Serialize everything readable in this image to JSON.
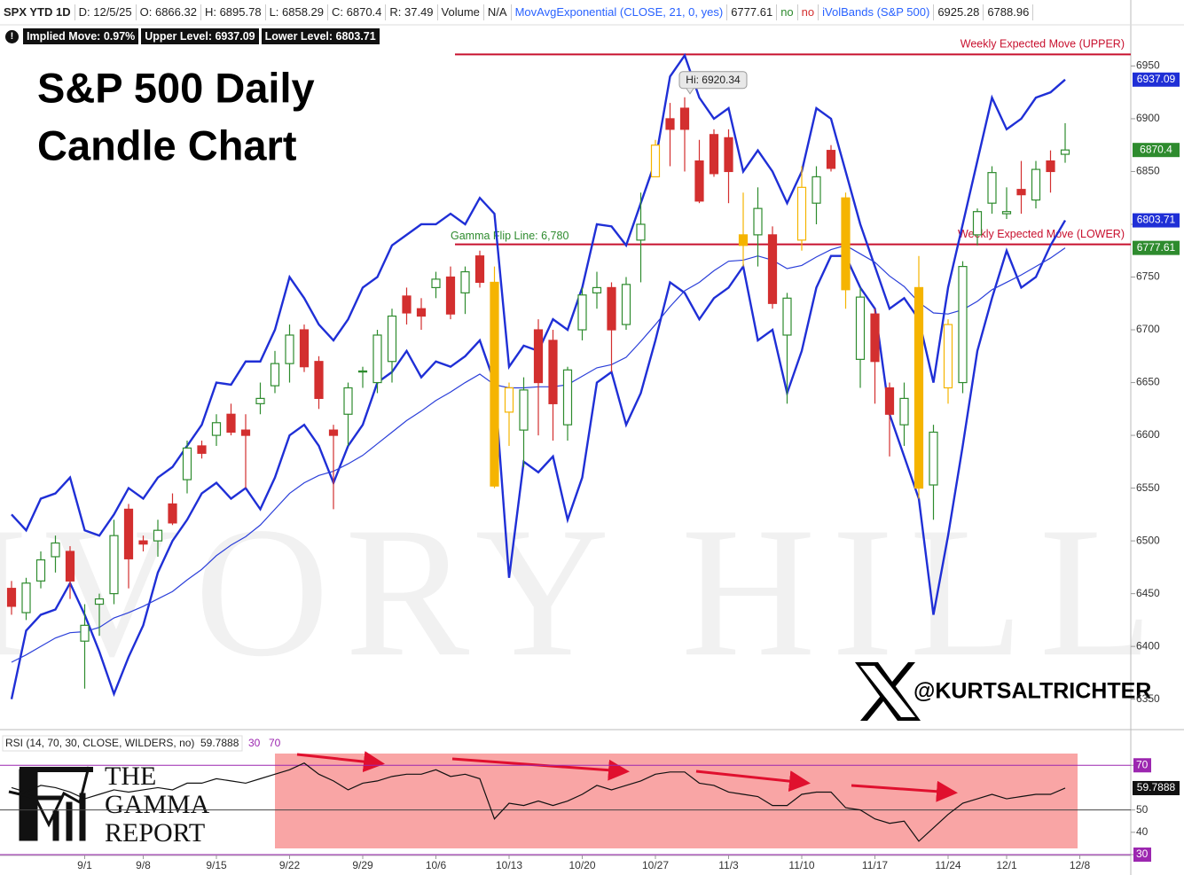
{
  "header": {
    "items": [
      "SPX YTD 1D",
      "D: 12/5/25",
      "O: 6866.32",
      "H: 6895.78",
      "L: 6858.29",
      "C: 6870.4",
      "R: 37.49",
      "Volume",
      "N/A",
      "MovAvgExponential (CLOSE, 21, 0, yes)",
      "6777.61",
      "no",
      "no",
      "iVolBands (S&P 500)",
      "6925.28",
      "6788.96"
    ]
  },
  "implied_move": [
    "Implied Move: 0.97%",
    "Upper Level: 6937.09",
    "Lower Level: 6803.71"
  ],
  "branding": {
    "watermark": "IVORY HILL",
    "handle": "@KURTSALTRICHTER",
    "logo": [
      "THE",
      "GAMMA",
      "REPORT"
    ]
  },
  "chart_data": [
    {
      "type": "candlestick",
      "title": [
        "S&P 500 Daily",
        "Candle Chart"
      ],
      "categories": [
        null,
        null,
        null,
        null,
        null,
        "9/1",
        null,
        null,
        null,
        "9/8",
        null,
        null,
        null,
        null,
        "9/15",
        null,
        null,
        null,
        null,
        "9/22",
        null,
        null,
        null,
        null,
        "9/29",
        null,
        null,
        null,
        null,
        "10/6",
        null,
        null,
        null,
        null,
        "10/13",
        null,
        null,
        null,
        null,
        "10/20",
        null,
        null,
        null,
        null,
        "10/27",
        null,
        null,
        null,
        null,
        "11/3",
        null,
        null,
        null,
        null,
        "11/10",
        null,
        null,
        null,
        null,
        "11/17",
        null,
        null,
        null,
        null,
        "11/24",
        null,
        null,
        null,
        "12/1",
        null,
        null,
        null,
        null,
        "12/8"
      ],
      "open": [
        6455,
        6432,
        6462,
        6485,
        6490,
        6405,
        6440,
        6450,
        6530,
        6500,
        6500,
        6535,
        6558,
        6590,
        6600,
        6620,
        6605,
        6630,
        6647,
        6668,
        6700,
        6670,
        6605,
        6620,
        6660,
        6650,
        6670,
        6732,
        6720,
        6740,
        6750,
        6735,
        6770,
        6745,
        6622,
        6605,
        6700,
        6690,
        6610,
        6700,
        6735,
        6740,
        6705,
        6785,
        6845,
        6900,
        6910,
        6860,
        6885,
        6882,
        6790,
        6790,
        6790,
        6695,
        6785,
        6820,
        6870,
        6825,
        6672,
        6715,
        6645,
        6610,
        6740,
        6553,
        6645,
        6650,
        6790,
        6820,
        6810,
        6833,
        6823,
        6860,
        6866.32,
        null
      ],
      "high": [
        6462,
        6465,
        6490,
        6505,
        6495,
        6440,
        6450,
        6520,
        6535,
        6505,
        6520,
        6545,
        6595,
        6595,
        6620,
        6630,
        6620,
        6650,
        6680,
        6705,
        6705,
        6675,
        6610,
        6650,
        6665,
        6700,
        6720,
        6740,
        6730,
        6755,
        6760,
        6760,
        6775,
        6760,
        6650,
        6655,
        6710,
        6700,
        6665,
        6740,
        6755,
        6745,
        6750,
        6830,
        6880,
        6915,
        6920.34,
        6880,
        6890,
        6890,
        6830,
        6835,
        6798,
        6735,
        6855,
        6855,
        6875,
        6830,
        6740,
        6720,
        6650,
        6650,
        6770,
        6610,
        6710,
        6765,
        6815,
        6855,
        6835,
        6860,
        6860,
        6870,
        6895.78,
        null
      ],
      "low": [
        6430,
        6425,
        6455,
        6470,
        6445,
        6360,
        6410,
        6440,
        6455,
        6490,
        6485,
        6515,
        6545,
        6578,
        6590,
        6600,
        6550,
        6620,
        6640,
        6650,
        6660,
        6625,
        6530,
        6590,
        6645,
        6640,
        6650,
        6705,
        6700,
        6730,
        6710,
        6715,
        6740,
        6550,
        6590,
        6570,
        6600,
        6595,
        6595,
        6690,
        6720,
        6660,
        6700,
        6745,
        6845,
        6855,
        6850,
        6820,
        6845,
        6820,
        6760,
        6760,
        6720,
        6630,
        6775,
        6800,
        6850,
        6720,
        6645,
        6630,
        6580,
        6590,
        6540,
        6520,
        6630,
        6640,
        6780,
        6810,
        6805,
        6810,
        6815,
        6830,
        6858.29,
        null
      ],
      "close": [
        6438,
        6460,
        6482,
        6498,
        6462,
        6420,
        6445,
        6505,
        6483,
        6497,
        6510,
        6517,
        6588,
        6583,
        6612,
        6603,
        6600,
        6635,
        6668,
        6695,
        6665,
        6635,
        6600,
        6645,
        6661,
        6695,
        6713,
        6716,
        6713,
        6748,
        6715,
        6755,
        6745,
        6552,
        6645,
        6643,
        6650,
        6630,
        6662,
        6733,
        6740,
        6700,
        6743,
        6800,
        6875,
        6890,
        6890,
        6822,
        6848,
        6850,
        6780,
        6815,
        6725,
        6730,
        6835,
        6845,
        6853,
        6738,
        6731,
        6670,
        6620,
        6635,
        6550,
        6603,
        6705,
        6760,
        6812,
        6849,
        6812,
        6828,
        6852,
        6850,
        6870.4,
        null
      ],
      "candle_colors": [
        "#d32f2f",
        "#2e8b2e",
        "#2e8b2e",
        "#2e8b2e",
        "#d32f2f",
        "#2e8b2e",
        "#2e8b2e",
        "#2e8b2e",
        "#d32f2f",
        "#d32f2f",
        "#2e8b2e",
        "#d32f2f",
        "#2e8b2e",
        "#d32f2f",
        "#2e8b2e",
        "#d32f2f",
        "#d32f2f",
        "#2e8b2e",
        "#2e8b2e",
        "#2e8b2e",
        "#d32f2f",
        "#d32f2f",
        "#d32f2f",
        "#2e8b2e",
        "#2e8b2e",
        "#2e8b2e",
        "#2e8b2e",
        "#d32f2f",
        "#d32f2f",
        "#2e8b2e",
        "#d32f2f",
        "#2e8b2e",
        "#d32f2f",
        "#f5b400",
        "#f5b400",
        "#2e8b2e",
        "#d32f2f",
        "#d32f2f",
        "#2e8b2e",
        "#2e8b2e",
        "#2e8b2e",
        "#d32f2f",
        "#2e8b2e",
        "#2e8b2e",
        "#f5b400",
        "#d32f2f",
        "#d32f2f",
        "#d32f2f",
        "#d32f2f",
        "#d32f2f",
        "#f5b400",
        "#2e8b2e",
        "#d32f2f",
        "#2e8b2e",
        "#f5b400",
        "#2e8b2e",
        "#d32f2f",
        "#f5b400",
        "#2e8b2e",
        "#d32f2f",
        "#d32f2f",
        "#2e8b2e",
        "#f5b400",
        "#2e8b2e",
        "#f5b400",
        "#2e8b2e",
        "#2e8b2e",
        "#2e8b2e",
        "#2e8b2e",
        "#d32f2f",
        "#2e8b2e",
        "#d32f2f",
        "#2e8b2e",
        null
      ],
      "series": [
        {
          "color": "#1f2fd6",
          "width": 2.4,
          "values": [
            6525,
            6510,
            6540,
            6545,
            6560,
            6510,
            6505,
            6525,
            6550,
            6540,
            6560,
            6570,
            6590,
            6610,
            6650,
            6648,
            6670,
            6670,
            6700,
            6750,
            6730,
            6705,
            6690,
            6710,
            6740,
            6750,
            6780,
            6790,
            6800,
            6800,
            6810,
            6800,
            6825,
            6810,
            6665,
            6685,
            6680,
            6710,
            6700,
            6740,
            6800,
            6798,
            6780,
            6820,
            6860,
            6940,
            6960,
            6920,
            6900,
            6910,
            6850,
            6870,
            6850,
            6820,
            6850,
            6910,
            6900,
            6850,
            6800,
            6760,
            6720,
            6730,
            6710,
            6650,
            6740,
            6800,
            6860,
            6920,
            6890,
            6900,
            6920,
            6925,
            6937.09,
            null
          ]
        },
        {
          "color": "#1f2fd6",
          "width": 2.4,
          "values": [
            6350,
            6415,
            6430,
            6435,
            6460,
            6430,
            6395,
            6355,
            6390,
            6420,
            6470,
            6500,
            6520,
            6545,
            6555,
            6540,
            6550,
            6530,
            6560,
            6600,
            6610,
            6590,
            6555,
            6590,
            6610,
            6650,
            6660,
            6680,
            6655,
            6670,
            6665,
            6675,
            6690,
            6650,
            6465,
            6575,
            6565,
            6580,
            6520,
            6560,
            6650,
            6660,
            6610,
            6640,
            6690,
            6745,
            6735,
            6710,
            6730,
            6740,
            6760,
            6690,
            6700,
            6640,
            6680,
            6740,
            6770,
            6770,
            6740,
            6720,
            6620,
            6580,
            6540,
            6430,
            6505,
            6590,
            6680,
            6730,
            6775,
            6740,
            6750,
            6780,
            6803.71,
            null
          ]
        },
        {
          "color": "#2b3fd9",
          "width": 1.2,
          "values": [
            6385,
            6392,
            6400,
            6408,
            6413,
            6414,
            6418,
            6427,
            6432,
            6438,
            6445,
            6452,
            6463,
            6473,
            6486,
            6496,
            6504,
            6515,
            6530,
            6545,
            6555,
            6562,
            6566,
            6573,
            6581,
            6592,
            6603,
            6614,
            6623,
            6633,
            6641,
            6650,
            6658,
            6648,
            6645,
            6645,
            6646,
            6646,
            6648,
            6656,
            6664,
            6667,
            6674,
            6689,
            6705,
            6722,
            6737,
            6745,
            6756,
            6765,
            6766,
            6770,
            6766,
            6758,
            6761,
            6769,
            6776,
            6780,
            6772,
            6764,
            6751,
            6741,
            6726,
            6716,
            6715,
            6719,
            6727,
            6738,
            6745,
            6752,
            6760,
            6768,
            6777.61,
            null
          ]
        }
      ],
      "tags": [
        {
          "series": 0,
          "color": "#1f2fd6"
        },
        {
          "close": true,
          "color": "#2e8b2e"
        },
        {
          "series": 1,
          "color": "#1f2fd6"
        },
        {
          "series": 2,
          "color": "#2e8b2e"
        }
      ],
      "ylim": [
        6322,
        6989
      ],
      "yticks": [
        6350,
        6400,
        6450,
        6500,
        6550,
        6600,
        6650,
        6700,
        6750,
        6800,
        6850,
        6900,
        6950
      ],
      "hlines": [
        {
          "label": "Weekly Expected Move (UPPER)",
          "value": 6961,
          "color": "#c8102e"
        },
        {
          "label": "Weekly Expected Move (LOWER)",
          "value": 6781,
          "color": "#c8102e"
        }
      ],
      "gamma_flip": {
        "label": "Gamma Flip Line: 6,780",
        "value": 6780,
        "color": "#2e8b2e"
      },
      "annotation": "Hi: 6920.34"
    },
    {
      "type": "line",
      "title": "RSI (14, 70, 30, CLOSE, WILDERS, no)",
      "color": "#111111",
      "values": [
        60,
        58,
        61,
        60,
        58,
        55,
        57,
        59,
        58,
        59,
        60,
        59,
        62,
        62,
        64,
        63,
        62,
        64,
        66,
        68,
        71,
        66,
        63,
        59,
        62,
        63,
        65,
        66,
        66,
        68,
        65,
        66,
        64,
        46,
        53,
        52,
        54,
        52,
        54,
        57,
        61,
        59,
        61,
        63,
        66,
        67,
        67,
        62,
        61,
        58,
        57,
        56,
        52,
        52,
        57,
        58,
        58,
        51,
        50,
        46,
        44,
        45,
        36,
        42,
        48,
        53,
        55,
        57,
        55,
        56,
        57,
        57,
        59.7888,
        null
      ],
      "ylim": [
        30,
        84
      ],
      "yticks": [
        30,
        40,
        50,
        70
      ],
      "levels": [
        {
          "value": 70,
          "color": "#9c27b0"
        },
        {
          "value": 50,
          "color": "#444444"
        },
        {
          "value": 30,
          "color": "#9c27b0"
        }
      ]
    }
  ]
}
